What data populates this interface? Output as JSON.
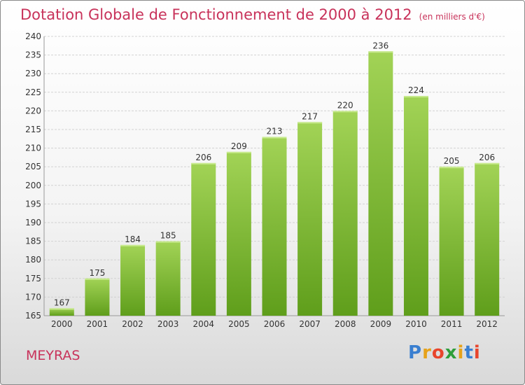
{
  "header": {
    "title": "Dotation Globale de Fonctionnement de 2000 à 2012",
    "subtitle": "(en milliers d'€)"
  },
  "commune": "MEYRAS",
  "logo": {
    "letters": [
      {
        "ch": "P",
        "color": "#3a7fd0"
      },
      {
        "ch": "r",
        "color": "#e6a21a"
      },
      {
        "ch": "o",
        "color": "#e8452c"
      },
      {
        "ch": "x",
        "color": "#2e9e3a"
      },
      {
        "ch": "i",
        "color": "#e6a21a"
      },
      {
        "ch": "t",
        "color": "#3a7fd0"
      },
      {
        "ch": "i",
        "color": "#e8452c"
      }
    ]
  },
  "chart_data": {
    "type": "bar",
    "categories": [
      "2000",
      "2001",
      "2002",
      "2003",
      "2004",
      "2005",
      "2006",
      "2007",
      "2008",
      "2009",
      "2010",
      "2011",
      "2012"
    ],
    "values": [
      167,
      175,
      184,
      185,
      206,
      209,
      213,
      217,
      220,
      236,
      224,
      205,
      206
    ],
    "ylim": [
      165,
      240
    ],
    "yticks": [
      165,
      170,
      175,
      180,
      185,
      190,
      195,
      200,
      205,
      210,
      215,
      220,
      225,
      230,
      235,
      240
    ],
    "grid": true,
    "bar_color_top": "#a2d356",
    "bar_color_bottom": "#5f9e1b"
  }
}
